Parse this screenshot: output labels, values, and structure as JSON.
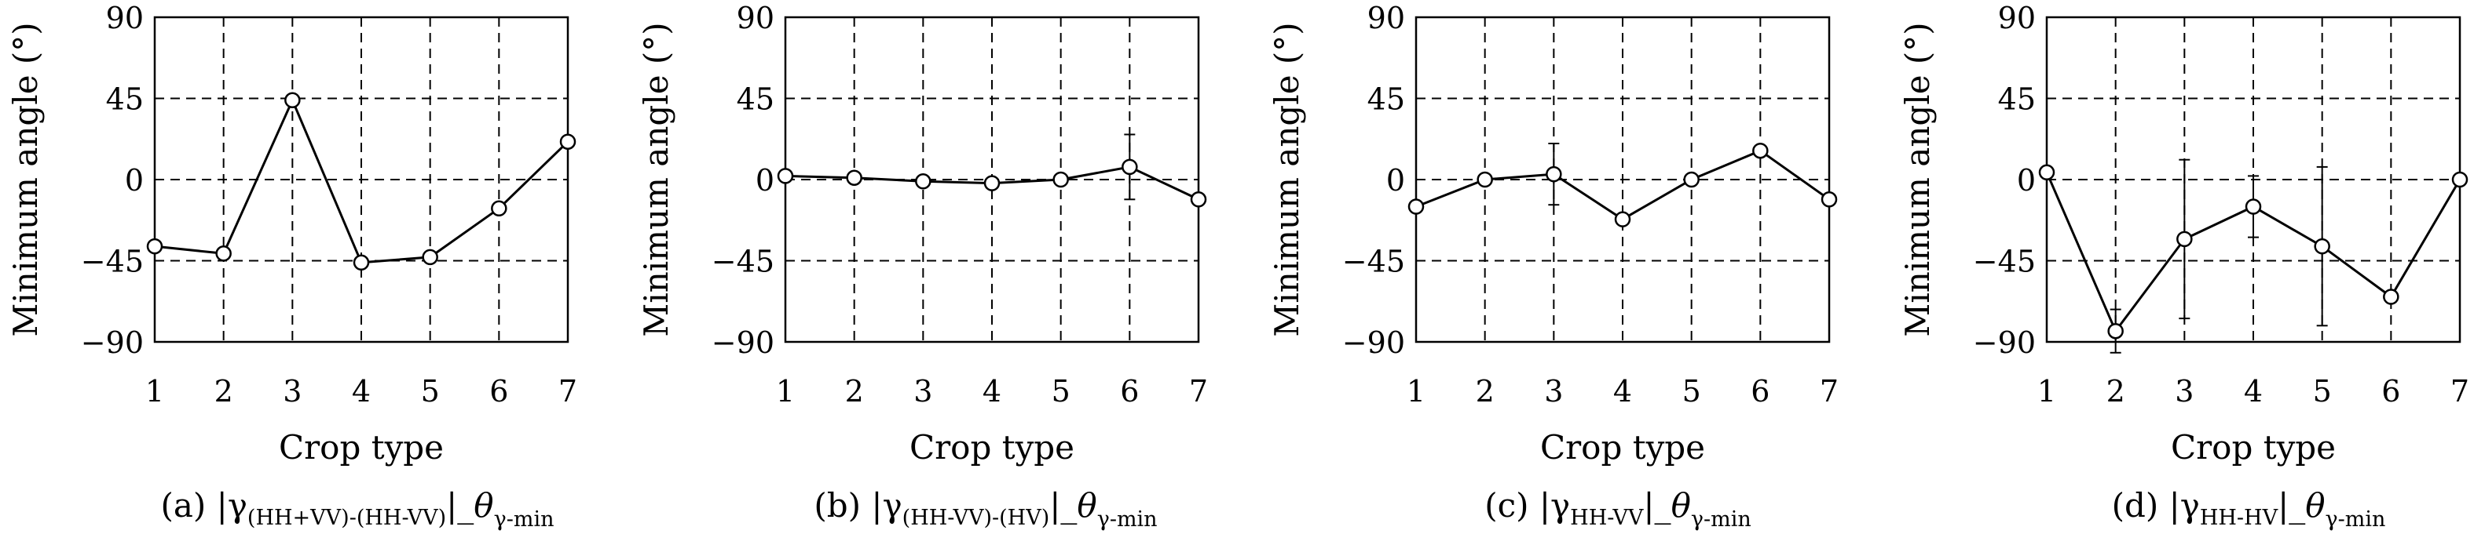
{
  "chart_data": [
    {
      "type": "line",
      "panel_label": "(a)",
      "caption": {
        "open": "|γ",
        "sub": "(HH+VV)-(HH-VV)",
        "close": "|_",
        "theta": "θ",
        "theta_sub": "γ-min"
      },
      "xlabel": "Crop type",
      "ylabel": "Minimum angle (°)",
      "x": [
        1,
        2,
        3,
        4,
        5,
        6,
        7
      ],
      "y": [
        -37,
        -41,
        44,
        -46,
        -43,
        -16,
        21
      ],
      "yerr": [
        0,
        0,
        0,
        0,
        0,
        0,
        0
      ],
      "xlim": [
        1,
        7
      ],
      "ylim": [
        -90,
        90
      ],
      "xticks": [
        "1",
        "2",
        "3",
        "4",
        "5",
        "6",
        "7"
      ],
      "yticks": [
        "90",
        "45",
        "0",
        "-45",
        "-90"
      ],
      "grid": true
    },
    {
      "type": "line",
      "panel_label": "(b)",
      "caption": {
        "open": "|γ",
        "sub": "(HH-VV)-(HV)",
        "close": "|_",
        "theta": "θ",
        "theta_sub": "γ-min"
      },
      "xlabel": "Crop type",
      "ylabel": "Minimum angle (°)",
      "x": [
        1,
        2,
        3,
        4,
        5,
        6,
        7
      ],
      "y": [
        2,
        1,
        -1,
        -2,
        0,
        7,
        -11
      ],
      "yerr": [
        0,
        0,
        0,
        0,
        0,
        18,
        0
      ],
      "xlim": [
        1,
        7
      ],
      "ylim": [
        -90,
        90
      ],
      "xticks": [
        "1",
        "2",
        "3",
        "4",
        "5",
        "6",
        "7"
      ],
      "yticks": [
        "90",
        "45",
        "0",
        "-45",
        "-90"
      ],
      "grid": true
    },
    {
      "type": "line",
      "panel_label": "(c)",
      "caption": {
        "open": "|γ",
        "sub": "HH-VV",
        "close": "|_",
        "theta": "θ",
        "theta_sub": "γ-min"
      },
      "xlabel": "Crop type",
      "ylabel": "Minimum angle (°)",
      "x": [
        1,
        2,
        3,
        4,
        5,
        6,
        7
      ],
      "y": [
        -15,
        0,
        3,
        -22,
        0,
        16,
        -11
      ],
      "yerr": [
        0,
        0,
        17,
        0,
        0,
        0,
        0
      ],
      "xlim": [
        1,
        7
      ],
      "ylim": [
        -90,
        90
      ],
      "xticks": [
        "1",
        "2",
        "3",
        "4",
        "5",
        "6",
        "7"
      ],
      "yticks": [
        "90",
        "45",
        "0",
        "-45",
        "-90"
      ],
      "grid": true
    },
    {
      "type": "line",
      "panel_label": "(d)",
      "caption": {
        "open": "|γ",
        "sub": "HH-HV",
        "close": "|_",
        "theta": "θ",
        "theta_sub": "γ-min"
      },
      "xlabel": "Crop type",
      "ylabel": "Minimum angle (°)",
      "x": [
        1,
        2,
        3,
        4,
        5,
        6,
        7
      ],
      "y": [
        4,
        -84,
        -33,
        -15,
        -37,
        -65,
        0
      ],
      "yerr": [
        0,
        12,
        44,
        17,
        44,
        0,
        0
      ],
      "xlim": [
        1,
        7
      ],
      "ylim": [
        -90,
        90
      ],
      "xticks": [
        "1",
        "2",
        "3",
        "4",
        "5",
        "6",
        "7"
      ],
      "yticks": [
        "90",
        "45",
        "0",
        "-45",
        "-90"
      ],
      "grid": true
    }
  ]
}
